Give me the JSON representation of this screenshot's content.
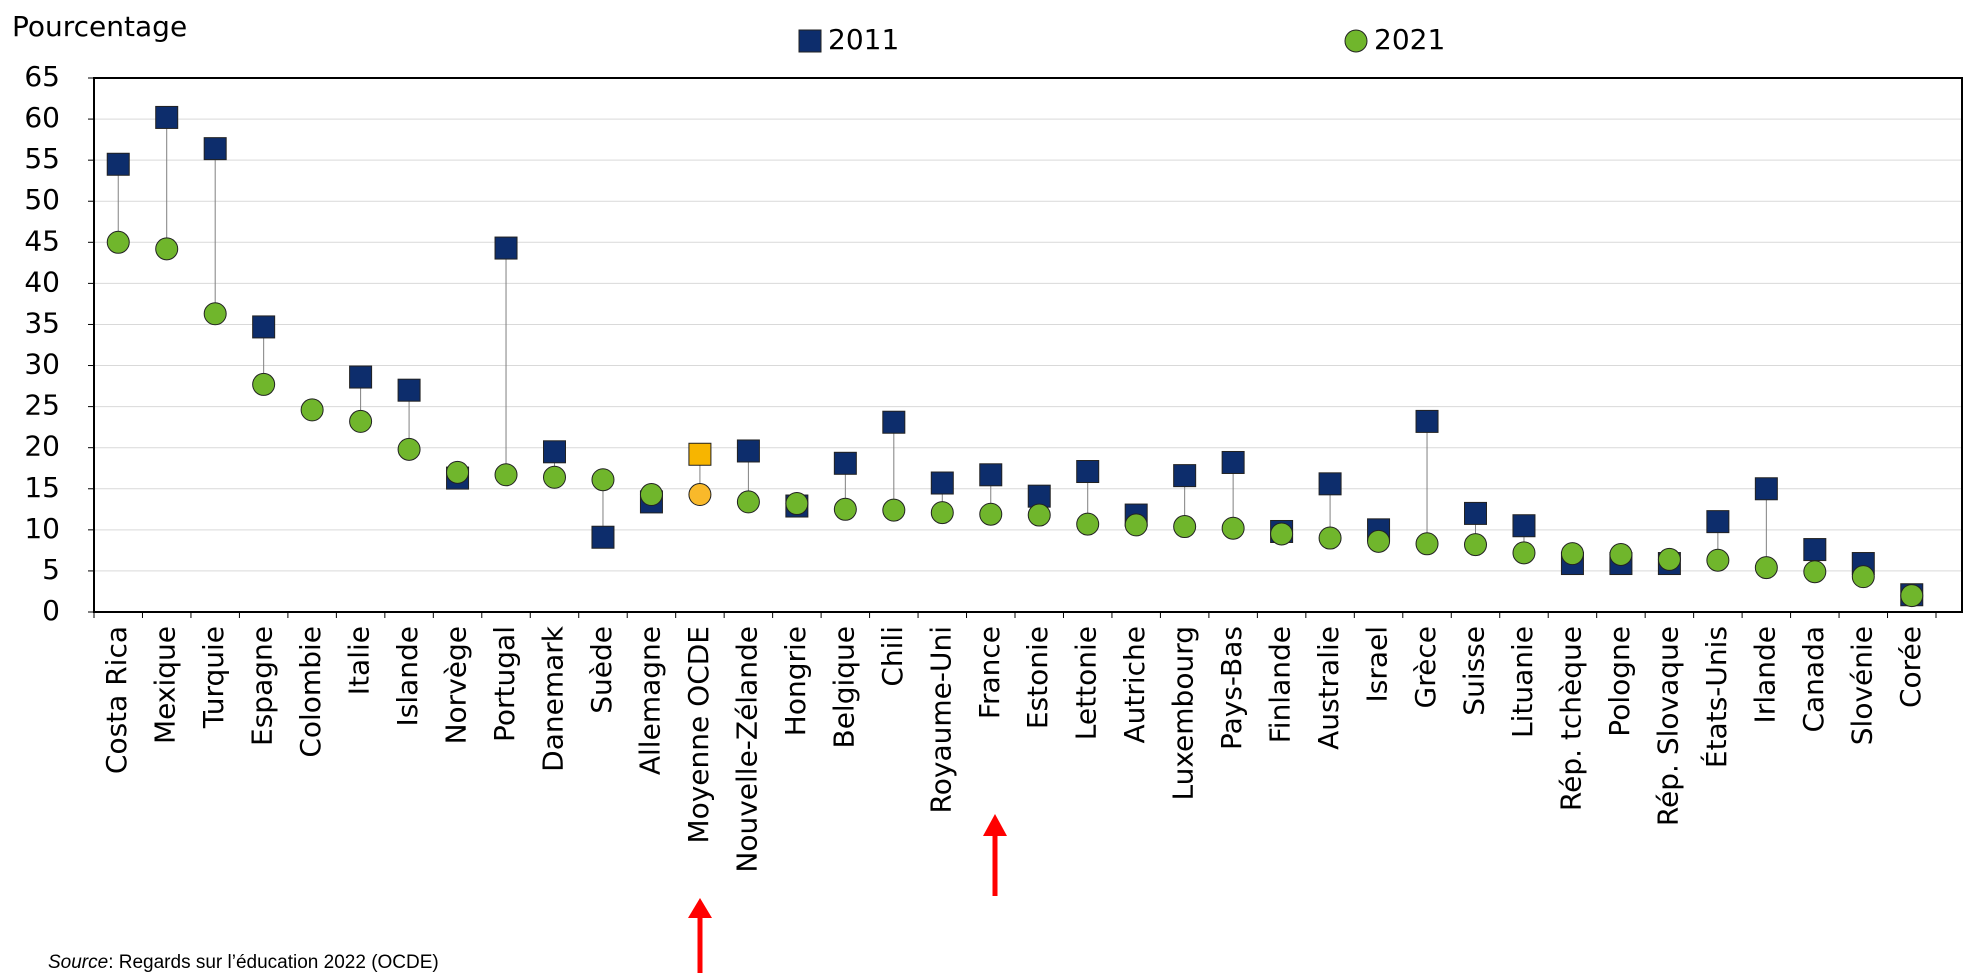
{
  "chart_data": {
    "type": "dotplot",
    "y_axis_label": "Pourcentage",
    "categories": [
      "Costa Rica",
      "Mexique",
      "Turquie",
      "Espagne",
      "Colombie",
      "Italie",
      "Islande",
      "Norvège",
      "Portugal",
      "Danemark",
      "Suède",
      "Allemagne",
      "Moyenne OCDE",
      "Nouvelle-Zélande",
      "Hongrie",
      "Belgique",
      "Chili",
      "Royaume-Uni",
      "France",
      "Estonie",
      "Lettonie",
      "Autriche",
      "Luxembourg",
      "Pays-Bas",
      "Finlande",
      "Australie",
      "Israel",
      "Grèce",
      "Suisse",
      "Lituanie",
      "Rép. tchèque",
      "Pologne",
      "Rép. Slovaque",
      "États-Unis",
      "Irlande",
      "Canada",
      "Slovénie",
      "Corée"
    ],
    "series": [
      {
        "name": "2011",
        "color": "#0d2d6c",
        "marker": "square",
        "highlight_color": "#f7b500",
        "values": [
          54.5,
          60.2,
          56.4,
          34.7,
          null,
          28.6,
          27,
          16.3,
          44.3,
          19.5,
          9.1,
          13.4,
          19.2,
          19.6,
          12.9,
          18.1,
          23.1,
          15.7,
          16.7,
          14.1,
          17.1,
          11.8,
          16.6,
          18.2,
          9.8,
          15.6,
          10,
          23.2,
          12,
          10.5,
          5.9,
          5.9,
          5.9,
          11,
          15,
          7.6,
          5.9,
          2.1
        ]
      },
      {
        "name": "2021",
        "color": "#70b62c",
        "marker": "circle",
        "highlight_color": "#f9b92a",
        "values": [
          45,
          44.2,
          36.3,
          27.7,
          24.6,
          23.2,
          19.8,
          17,
          16.7,
          16.4,
          16.1,
          14.3,
          14.3,
          13.4,
          13.2,
          12.5,
          12.4,
          12.1,
          11.9,
          11.8,
          10.7,
          10.6,
          10.4,
          10.2,
          9.5,
          9,
          8.6,
          8.3,
          8.2,
          7.2,
          7.1,
          7,
          6.4,
          6.3,
          5.4,
          4.9,
          4.3,
          2
        ]
      }
    ],
    "highlight_category": "Moyenne OCDE",
    "ylim": [
      0,
      65
    ],
    "yticks": [
      0,
      5,
      10,
      15,
      20,
      25,
      30,
      35,
      40,
      45,
      50,
      55,
      60,
      65
    ],
    "grid": true,
    "legend": "top",
    "source_label": "Source",
    "source_text": ": Regards sur l’éducation 2022 (OCDE)"
  }
}
